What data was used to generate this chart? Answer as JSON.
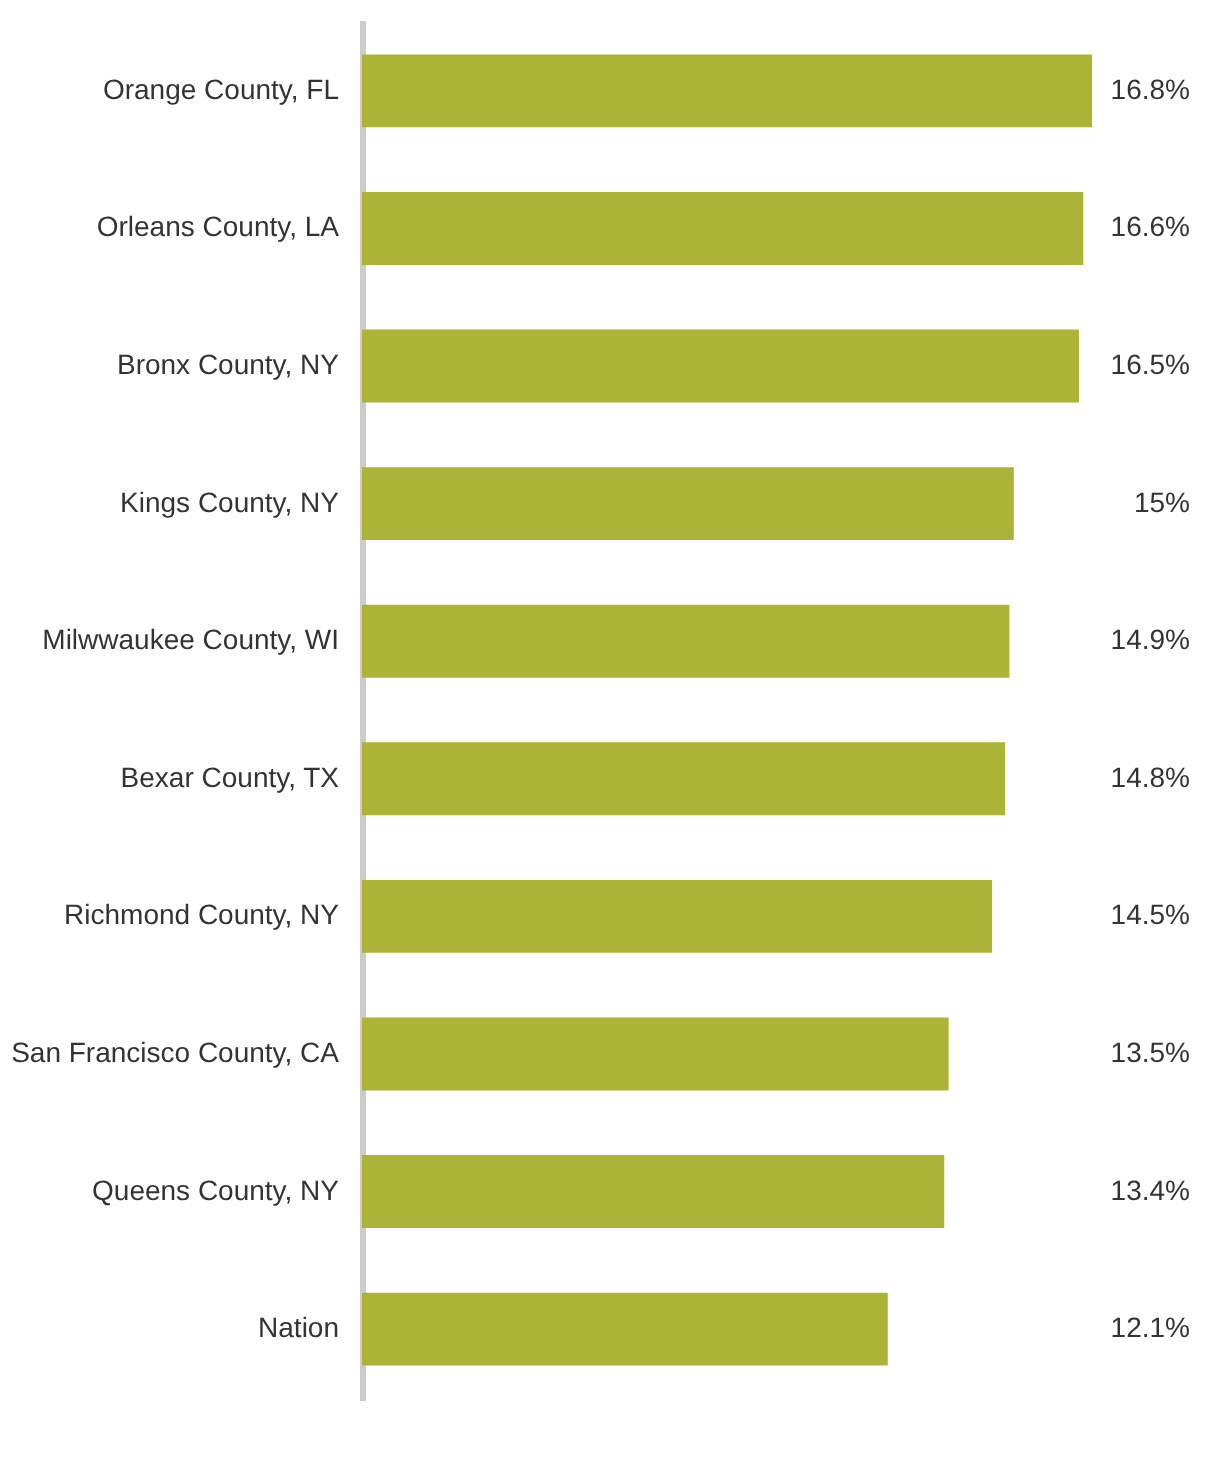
{
  "chart_data": {
    "type": "bar",
    "orientation": "horizontal",
    "categories": [
      "Orange County, FL",
      "Orleans County, LA",
      "Bronx County, NY",
      "Kings County, NY",
      "Milwwaukee County, WI",
      "Bexar County, TX",
      "Richmond County, NY",
      "San Francisco County, CA",
      "Queens County, NY",
      "Nation"
    ],
    "values": [
      16.8,
      16.6,
      16.5,
      15,
      14.9,
      14.8,
      14.5,
      13.5,
      13.4,
      12.1
    ],
    "value_labels": [
      "16.8%",
      "16.6%",
      "16.5%",
      "15%",
      "14.9%",
      "14.8%",
      "14.5%",
      "13.5%",
      "13.4%",
      "12.1%"
    ],
    "color": "#abb437",
    "tick_labels": "y"
  }
}
